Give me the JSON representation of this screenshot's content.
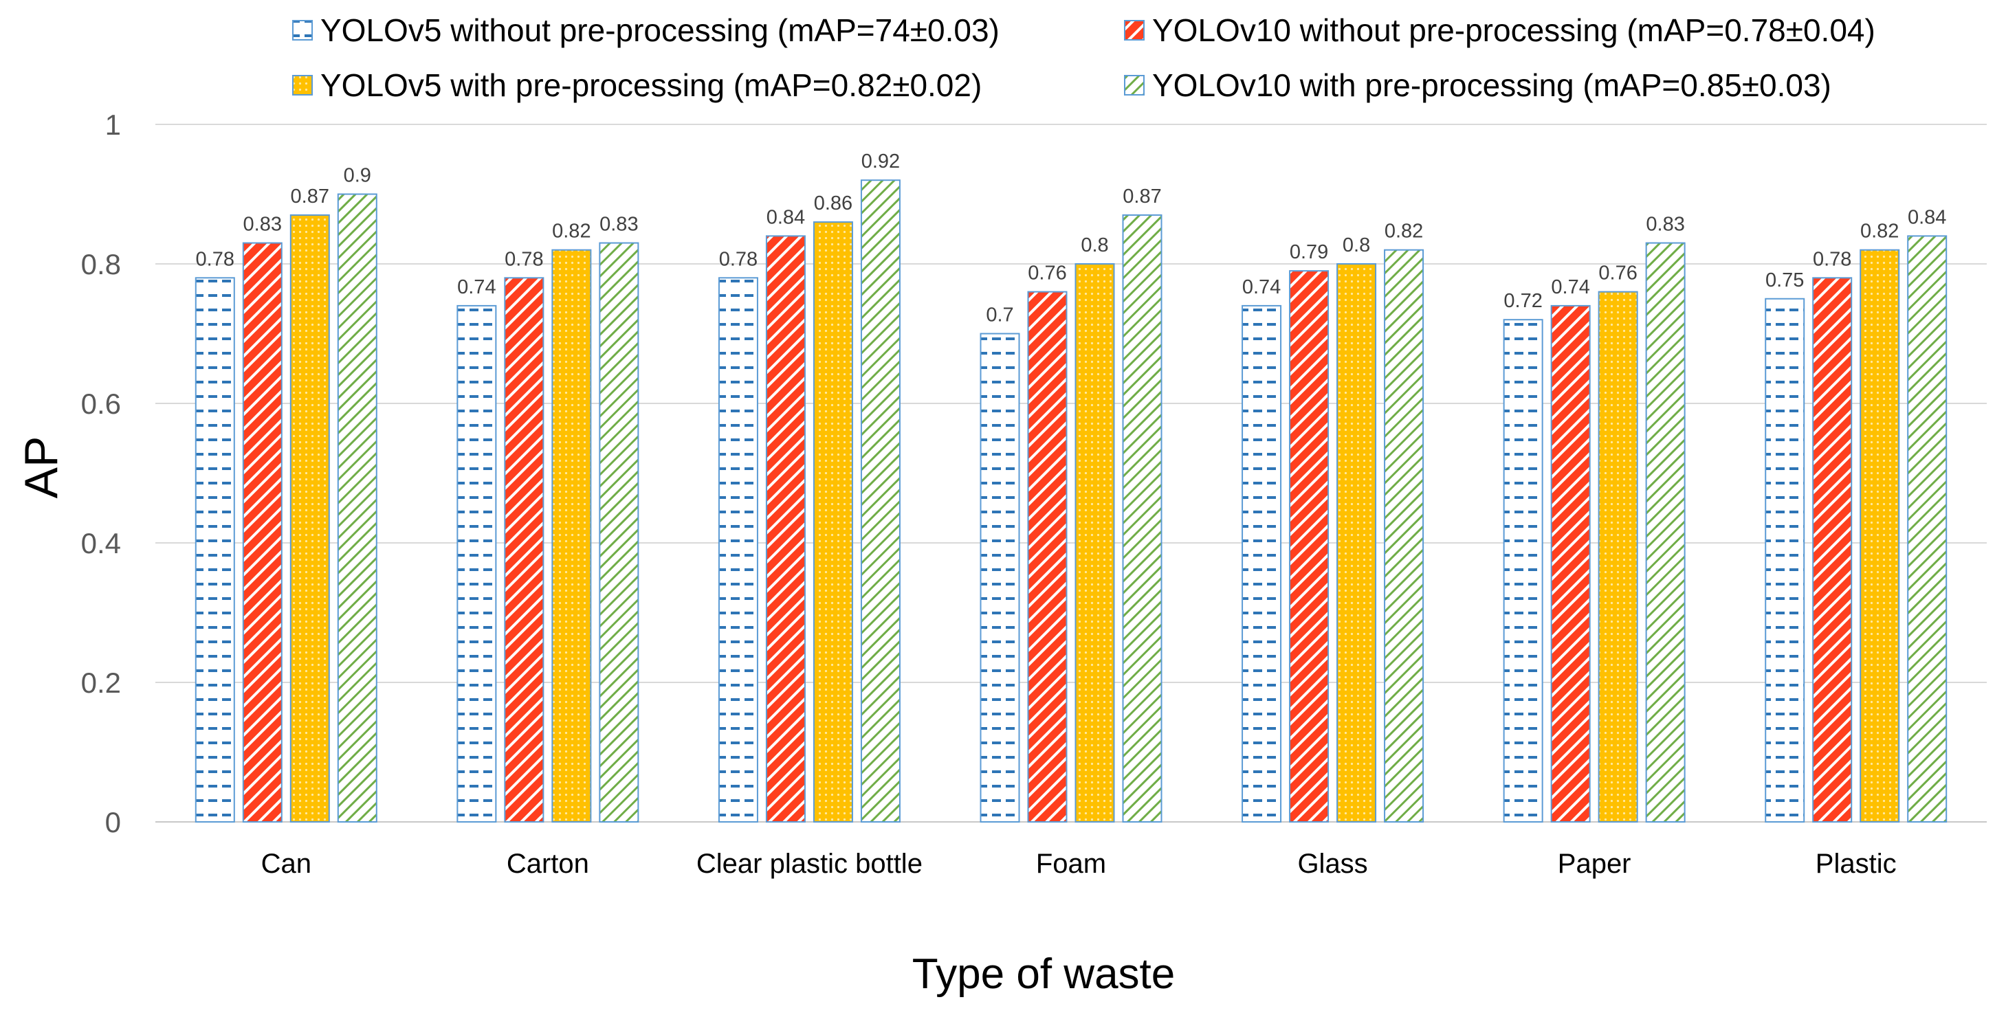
{
  "chart_data": {
    "type": "bar",
    "title": "",
    "xlabel": "Type of waste",
    "ylabel": "AP",
    "ylim": [
      0,
      1
    ],
    "yticks": [
      "0",
      "0.2",
      "0.4",
      "0.6",
      "0.8",
      "1"
    ],
    "grid": true,
    "legend_position": "top",
    "categories": [
      "Can",
      "Carton",
      "Clear plastic bottle",
      "Foam",
      "Glass",
      "Paper",
      "Plastic"
    ],
    "series": [
      {
        "name": "YOLOv5 without pre-processing (mAP=74±0.03)",
        "values": [
          0.78,
          0.74,
          0.78,
          0.7,
          0.74,
          0.72,
          0.75
        ],
        "color": "#2E75B6",
        "pattern": "dashes"
      },
      {
        "name": "YOLOv10 without pre-processing (mAP=0.78±0.04)",
        "values": [
          0.83,
          0.78,
          0.84,
          0.76,
          0.79,
          0.74,
          0.78
        ],
        "color": "#FF3F1E",
        "pattern": "diagonal-stripes"
      },
      {
        "name": "YOLOv5 with pre-processing (mAP=0.82±0.02)",
        "values": [
          0.87,
          0.82,
          0.86,
          0.8,
          0.8,
          0.76,
          0.82
        ],
        "color": "#FFC000",
        "pattern": "dots"
      },
      {
        "name": "YOLOv10 with pre-processing (mAP=0.85±0.03)",
        "values": [
          0.9,
          0.83,
          0.92,
          0.87,
          0.82,
          0.83,
          0.84
        ],
        "color": "#70AD47",
        "pattern": "light-diagonal"
      }
    ],
    "data_labels": true
  }
}
